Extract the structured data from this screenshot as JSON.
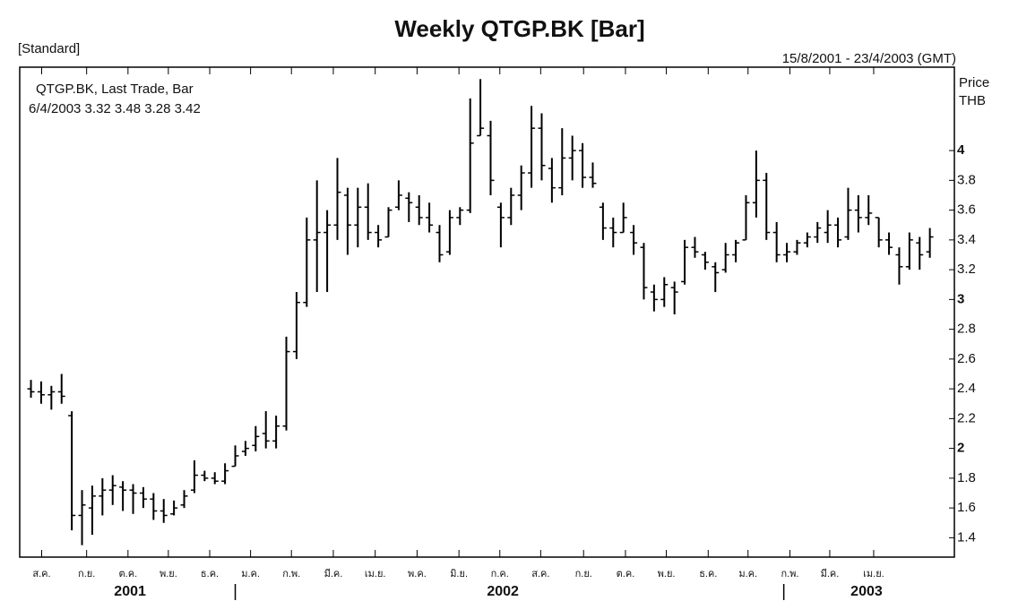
{
  "chart_data": {
    "type": "ohlc",
    "title": "Weekly QTGP.BK [Bar]",
    "subtitle_left": "[Standard]",
    "date_range": "15/8/2001 - 23/4/2003 (GMT)",
    "legend_line1": "QTGP.BK, Last Trade, Bar",
    "legend_line2": "6/4/2003 3.32 3.48 3.28 3.42",
    "y_label": [
      "Price",
      "THB"
    ],
    "color": "#000000",
    "open": [
      2.4,
      2.38,
      2.36,
      2.38,
      2.22,
      1.55,
      1.6,
      1.68,
      1.72,
      1.74,
      1.72,
      1.7,
      1.66,
      1.58,
      1.56,
      1.62,
      1.72,
      1.82,
      1.8,
      1.78,
      1.88,
      1.98,
      2.02,
      2.1,
      2.05,
      2.15,
      2.65,
      2.98,
      3.4,
      3.45,
      3.5,
      3.7,
      3.5,
      3.62,
      3.45,
      3.42,
      3.62,
      3.68,
      3.62,
      3.55,
      3.45,
      3.32,
      3.55,
      3.6,
      4.1,
      4.1,
      3.62,
      3.55,
      3.7,
      3.85,
      4.15,
      3.88,
      3.75,
      3.95,
      4.0,
      3.82,
      3.62,
      3.48,
      3.45,
      3.45,
      3.35,
      3.05,
      3.0,
      3.08,
      3.12,
      3.35,
      3.3,
      3.22,
      3.2,
      3.3,
      3.4,
      3.65,
      3.8,
      3.45,
      3.3,
      3.32,
      3.38,
      3.42,
      3.45,
      3.5,
      3.42,
      3.6,
      3.55,
      3.55,
      3.4,
      3.3,
      3.22,
      3.38,
      3.32
    ],
    "high": [
      2.46,
      2.45,
      2.42,
      2.5,
      2.25,
      1.72,
      1.75,
      1.8,
      1.82,
      1.78,
      1.76,
      1.74,
      1.7,
      1.66,
      1.65,
      1.72,
      1.92,
      1.85,
      1.84,
      1.9,
      2.02,
      2.05,
      2.15,
      2.25,
      2.22,
      2.75,
      3.05,
      3.55,
      3.8,
      3.6,
      3.95,
      3.75,
      3.75,
      3.78,
      3.5,
      3.62,
      3.8,
      3.72,
      3.7,
      3.65,
      3.5,
      3.6,
      3.62,
      4.35,
      4.48,
      4.2,
      3.65,
      3.75,
      3.9,
      4.3,
      4.25,
      3.95,
      4.15,
      4.1,
      4.05,
      3.92,
      3.65,
      3.55,
      3.65,
      3.5,
      3.38,
      3.1,
      3.15,
      3.12,
      3.4,
      3.42,
      3.32,
      3.25,
      3.38,
      3.4,
      3.7,
      4.0,
      3.85,
      3.52,
      3.38,
      3.4,
      3.45,
      3.52,
      3.6,
      3.55,
      3.75,
      3.7,
      3.7,
      3.55,
      3.45,
      3.35,
      3.45,
      3.42,
      3.48
    ],
    "low": [
      2.34,
      2.3,
      2.26,
      2.3,
      1.45,
      1.35,
      1.42,
      1.55,
      1.62,
      1.58,
      1.56,
      1.6,
      1.52,
      1.5,
      1.55,
      1.6,
      1.7,
      1.78,
      1.76,
      1.76,
      1.88,
      1.95,
      1.98,
      2.0,
      2.0,
      2.12,
      2.6,
      2.95,
      3.05,
      3.05,
      3.4,
      3.3,
      3.35,
      3.4,
      3.35,
      3.42,
      3.6,
      3.52,
      3.5,
      3.45,
      3.25,
      3.3,
      3.5,
      3.58,
      4.1,
      3.7,
      3.35,
      3.5,
      3.6,
      3.75,
      3.8,
      3.65,
      3.7,
      3.8,
      3.75,
      3.75,
      3.4,
      3.35,
      3.45,
      3.3,
      3.0,
      2.92,
      2.95,
      2.9,
      3.1,
      3.28,
      3.2,
      3.05,
      3.18,
      3.25,
      3.4,
      3.55,
      3.4,
      3.25,
      3.25,
      3.3,
      3.35,
      3.38,
      3.38,
      3.35,
      3.4,
      3.45,
      3.5,
      3.35,
      3.3,
      3.1,
      3.2,
      3.2,
      3.28
    ],
    "close": [
      2.38,
      2.36,
      2.38,
      2.35,
      1.55,
      1.62,
      1.68,
      1.72,
      1.75,
      1.72,
      1.7,
      1.66,
      1.58,
      1.55,
      1.6,
      1.68,
      1.82,
      1.8,
      1.78,
      1.85,
      1.95,
      2.0,
      2.08,
      2.05,
      2.15,
      2.65,
      2.98,
      3.4,
      3.45,
      3.5,
      3.72,
      3.5,
      3.62,
      3.45,
      3.4,
      3.6,
      3.7,
      3.65,
      3.55,
      3.5,
      3.3,
      3.55,
      3.6,
      4.05,
      4.15,
      3.8,
      3.55,
      3.7,
      3.85,
      4.15,
      3.9,
      3.75,
      3.95,
      4.0,
      3.82,
      3.78,
      3.48,
      3.45,
      3.55,
      3.38,
      3.08,
      3.0,
      3.1,
      3.05,
      3.35,
      3.32,
      3.25,
      3.18,
      3.3,
      3.38,
      3.65,
      3.8,
      3.45,
      3.3,
      3.32,
      3.38,
      3.42,
      3.48,
      3.5,
      3.4,
      3.6,
      3.55,
      3.58,
      3.4,
      3.35,
      3.22,
      3.4,
      3.3,
      3.42
    ],
    "xlim": [
      -1.1,
      90.4
    ],
    "xticks": [
      {
        "value": 1.05,
        "label": "ส.ค."
      },
      {
        "value": 5.45,
        "label": "ก.ย."
      },
      {
        "value": 9.5,
        "label": "ต.ค."
      },
      {
        "value": 13.45,
        "label": "พ.ย."
      },
      {
        "value": 17.5,
        "label": "ธ.ค."
      },
      {
        "value": 21.5,
        "label": "ม.ค."
      },
      {
        "value": 25.5,
        "label": "ก.พ."
      },
      {
        "value": 29.6,
        "label": "มี.ค."
      },
      {
        "value": 33.7,
        "label": "เม.ย."
      },
      {
        "value": 37.8,
        "label": "พ.ค."
      },
      {
        "value": 41.9,
        "label": "มิ.ย."
      },
      {
        "value": 45.9,
        "label": "ก.ค."
      },
      {
        "value": 49.9,
        "label": "ส.ค."
      },
      {
        "value": 54.1,
        "label": "ก.ย."
      },
      {
        "value": 58.2,
        "label": "ต.ค."
      },
      {
        "value": 62.2,
        "label": "พ.ย."
      },
      {
        "value": 66.3,
        "label": "ธ.ค."
      },
      {
        "value": 70.2,
        "label": "ม.ค."
      },
      {
        "value": 74.3,
        "label": "ก.พ."
      },
      {
        "value": 78.2,
        "label": "มี.ค."
      },
      {
        "value": 82.5,
        "label": "เม.ย."
      }
    ],
    "year_ticks": [
      {
        "value": 9.7,
        "label": "2001"
      },
      {
        "value": 46.2,
        "label": "2002"
      },
      {
        "value": 81.8,
        "label": "2003"
      }
    ],
    "year_breaks": [
      20,
      73.7
    ],
    "ylim": [
      1.27,
      4.56
    ],
    "yticks": [
      1.4,
      1.6,
      1.8,
      2,
      2.2,
      2.4,
      2.6,
      2.8,
      3,
      3.2,
      3.4,
      3.6,
      3.8,
      4
    ]
  }
}
